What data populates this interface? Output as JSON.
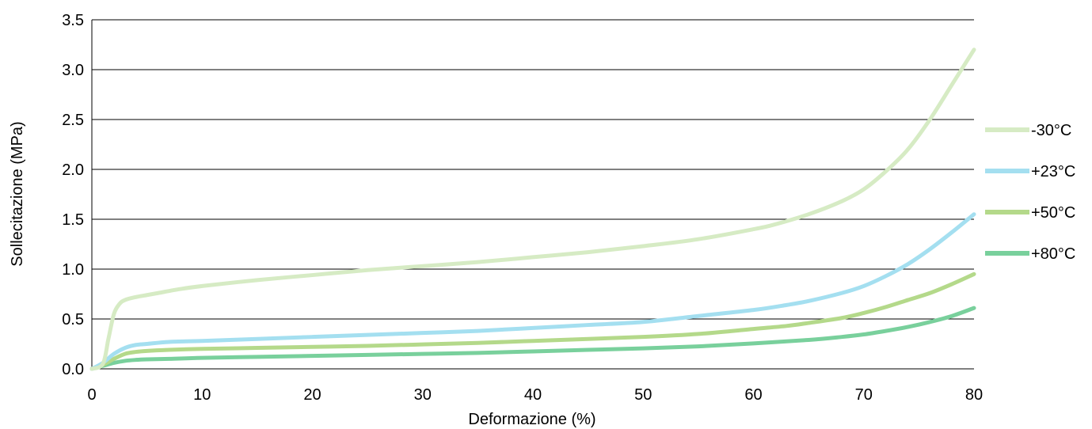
{
  "chart_data": {
    "type": "line",
    "title": "",
    "xlabel": "Deformazione (%)",
    "ylabel": "Sollecitazione (MPa)",
    "xlim": [
      0,
      80
    ],
    "ylim": [
      0,
      3.5
    ],
    "x_ticks": [
      "0",
      "10",
      "20",
      "30",
      "40",
      "50",
      "60",
      "70",
      "80"
    ],
    "y_ticks": [
      "0.0",
      "0.5",
      "1.0",
      "1.5",
      "2.0",
      "2.5",
      "3.0",
      "3.5"
    ],
    "grid": "horizontal",
    "legend_position": "right",
    "series": [
      {
        "name": "-30°C",
        "color": "#d6ebc4",
        "points": [
          [
            0,
            0
          ],
          [
            1,
            0.05
          ],
          [
            1.5,
            0.3
          ],
          [
            2,
            0.55
          ],
          [
            2.5,
            0.65
          ],
          [
            3,
            0.69
          ],
          [
            4,
            0.72
          ],
          [
            5,
            0.74
          ],
          [
            6,
            0.76
          ],
          [
            8,
            0.8
          ],
          [
            10,
            0.83
          ],
          [
            15,
            0.89
          ],
          [
            20,
            0.94
          ],
          [
            25,
            0.99
          ],
          [
            30,
            1.03
          ],
          [
            35,
            1.07
          ],
          [
            40,
            1.12
          ],
          [
            45,
            1.17
          ],
          [
            50,
            1.23
          ],
          [
            55,
            1.3
          ],
          [
            60,
            1.4
          ],
          [
            62,
            1.45
          ],
          [
            65,
            1.55
          ],
          [
            68,
            1.68
          ],
          [
            70,
            1.8
          ],
          [
            72,
            1.98
          ],
          [
            74,
            2.2
          ],
          [
            76,
            2.5
          ],
          [
            78,
            2.85
          ],
          [
            80,
            3.2
          ]
        ]
      },
      {
        "name": "+23°C",
        "color": "#a4dff0",
        "points": [
          [
            0,
            0
          ],
          [
            1,
            0.06
          ],
          [
            2,
            0.15
          ],
          [
            3,
            0.21
          ],
          [
            4,
            0.24
          ],
          [
            5,
            0.25
          ],
          [
            7,
            0.27
          ],
          [
            10,
            0.28
          ],
          [
            15,
            0.3
          ],
          [
            20,
            0.32
          ],
          [
            25,
            0.34
          ],
          [
            30,
            0.36
          ],
          [
            35,
            0.38
          ],
          [
            40,
            0.41
          ],
          [
            45,
            0.44
          ],
          [
            50,
            0.47
          ],
          [
            55,
            0.53
          ],
          [
            60,
            0.59
          ],
          [
            63,
            0.64
          ],
          [
            65,
            0.68
          ],
          [
            68,
            0.76
          ],
          [
            70,
            0.83
          ],
          [
            72,
            0.93
          ],
          [
            74,
            1.05
          ],
          [
            76,
            1.2
          ],
          [
            78,
            1.37
          ],
          [
            80,
            1.55
          ]
        ]
      },
      {
        "name": "+50°C",
        "color": "#b4d98a",
        "points": [
          [
            0,
            0
          ],
          [
            1,
            0.04
          ],
          [
            2,
            0.1
          ],
          [
            3,
            0.15
          ],
          [
            4,
            0.17
          ],
          [
            5,
            0.18
          ],
          [
            7,
            0.19
          ],
          [
            10,
            0.2
          ],
          [
            15,
            0.21
          ],
          [
            20,
            0.22
          ],
          [
            25,
            0.23
          ],
          [
            30,
            0.245
          ],
          [
            35,
            0.26
          ],
          [
            40,
            0.28
          ],
          [
            45,
            0.3
          ],
          [
            50,
            0.32
          ],
          [
            55,
            0.35
          ],
          [
            60,
            0.4
          ],
          [
            63,
            0.43
          ],
          [
            65,
            0.46
          ],
          [
            68,
            0.51
          ],
          [
            70,
            0.56
          ],
          [
            72,
            0.62
          ],
          [
            74,
            0.69
          ],
          [
            76,
            0.76
          ],
          [
            78,
            0.85
          ],
          [
            80,
            0.95
          ]
        ]
      },
      {
        "name": "+80°C",
        "color": "#79d09c",
        "points": [
          [
            0,
            0
          ],
          [
            1,
            0.03
          ],
          [
            2,
            0.06
          ],
          [
            3,
            0.08
          ],
          [
            4,
            0.09
          ],
          [
            5,
            0.095
          ],
          [
            7,
            0.1
          ],
          [
            10,
            0.11
          ],
          [
            15,
            0.12
          ],
          [
            20,
            0.13
          ],
          [
            25,
            0.14
          ],
          [
            30,
            0.15
          ],
          [
            35,
            0.16
          ],
          [
            40,
            0.175
          ],
          [
            45,
            0.19
          ],
          [
            50,
            0.205
          ],
          [
            55,
            0.225
          ],
          [
            60,
            0.255
          ],
          [
            65,
            0.29
          ],
          [
            68,
            0.32
          ],
          [
            70,
            0.345
          ],
          [
            72,
            0.38
          ],
          [
            74,
            0.42
          ],
          [
            76,
            0.47
          ],
          [
            78,
            0.53
          ],
          [
            80,
            0.61
          ]
        ]
      }
    ]
  }
}
